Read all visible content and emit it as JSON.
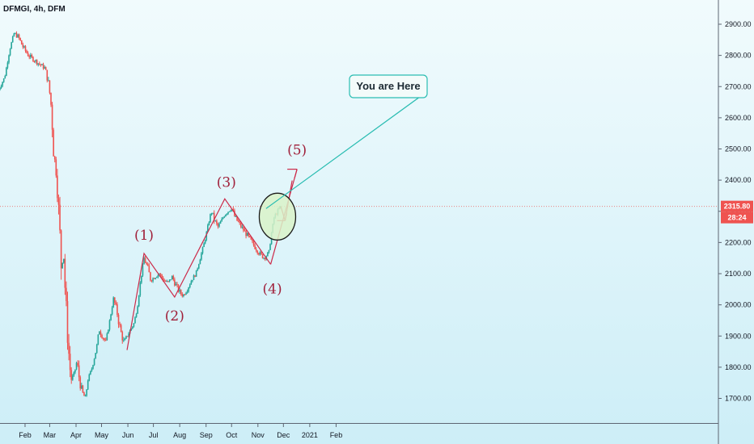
{
  "header": {
    "symbol": "DFMGI, 4h, DFM"
  },
  "colors": {
    "up": "#26a69a",
    "down": "#ef5350",
    "wave_line": "#cc2b4a",
    "wave_label": "#a0203a",
    "callout": "#2bbdb2",
    "circle_fill": "#d9f2c8",
    "circle_stroke": "#1a1a1a",
    "price_tag": "#ef5350"
  },
  "price_tags": {
    "last_price": "2315.80",
    "countdown": "28:24"
  },
  "callout": {
    "text": "You are Here"
  },
  "chart_data": {
    "type": "candlestick",
    "xlabel": "",
    "ylabel": "",
    "ylim": [
      1645,
      2960
    ],
    "y_ticks": [
      "2900.00",
      "2800.00",
      "2700.00",
      "2600.00",
      "2500.00",
      "2400.00",
      "2300.00",
      "2200.00",
      "2100.00",
      "2000.00",
      "1900.00",
      "1800.00",
      "1700.00"
    ],
    "x_ticks": [
      "Feb",
      "Mar",
      "Apr",
      "May",
      "Jun",
      "Jul",
      "Aug",
      "Sep",
      "Oct",
      "Nov",
      "Dec",
      "2021",
      "Feb"
    ],
    "series": [
      {
        "close_path": [
          [
            "2020-01-01",
            2690
          ],
          [
            "2020-01-08",
            2730
          ],
          [
            "2020-01-14",
            2820
          ],
          [
            "2020-01-19",
            2870
          ],
          [
            "2020-01-24",
            2860
          ],
          [
            "2020-01-29",
            2830
          ],
          [
            "2020-02-05",
            2800
          ],
          [
            "2020-02-12",
            2785
          ],
          [
            "2020-02-19",
            2770
          ],
          [
            "2020-02-24",
            2760
          ],
          [
            "2020-02-28",
            2720
          ],
          [
            "2020-03-01",
            2680
          ],
          [
            "2020-03-03",
            2630
          ],
          [
            "2020-03-06",
            2480
          ],
          [
            "2020-03-09",
            2420
          ],
          [
            "2020-03-12",
            2280
          ],
          [
            "2020-03-15",
            2100
          ],
          [
            "2020-03-17",
            2180
          ],
          [
            "2020-03-20",
            2000
          ],
          [
            "2020-03-23",
            1860
          ],
          [
            "2020-03-26",
            1760
          ],
          [
            "2020-03-30",
            1780
          ],
          [
            "2020-04-02",
            1820
          ],
          [
            "2020-04-05",
            1760
          ],
          [
            "2020-04-08",
            1720
          ],
          [
            "2020-04-12",
            1700
          ],
          [
            "2020-04-15",
            1760
          ],
          [
            "2020-04-20",
            1800
          ],
          [
            "2020-04-25",
            1860
          ],
          [
            "2020-04-28",
            1920
          ],
          [
            "2020-05-02",
            1900
          ],
          [
            "2020-05-06",
            1880
          ],
          [
            "2020-05-10",
            1940
          ],
          [
            "2020-05-15",
            2020
          ],
          [
            "2020-05-19",
            1980
          ],
          [
            "2020-05-23",
            1920
          ],
          [
            "2020-05-27",
            1880
          ],
          [
            "2020-05-31",
            1900
          ],
          [
            "2020-06-04",
            1920
          ],
          [
            "2020-06-08",
            1940
          ],
          [
            "2020-06-12",
            1990
          ],
          [
            "2020-06-16",
            2080
          ],
          [
            "2020-06-20",
            2150
          ],
          [
            "2020-06-24",
            2120
          ],
          [
            "2020-06-28",
            2080
          ],
          [
            "2020-07-03",
            2090
          ],
          [
            "2020-07-08",
            2100
          ],
          [
            "2020-07-13",
            2080
          ],
          [
            "2020-07-18",
            2070
          ],
          [
            "2020-07-23",
            2090
          ],
          [
            "2020-07-28",
            2060
          ],
          [
            "2020-08-01",
            2040
          ],
          [
            "2020-08-05",
            2030
          ],
          [
            "2020-08-10",
            2050
          ],
          [
            "2020-08-15",
            2080
          ],
          [
            "2020-08-20",
            2100
          ],
          [
            "2020-08-25",
            2150
          ],
          [
            "2020-08-30",
            2200
          ],
          [
            "2020-09-03",
            2250
          ],
          [
            "2020-09-07",
            2300
          ],
          [
            "2020-09-11",
            2270
          ],
          [
            "2020-09-15",
            2250
          ],
          [
            "2020-09-19",
            2270
          ],
          [
            "2020-09-23",
            2290
          ],
          [
            "2020-09-27",
            2300
          ],
          [
            "2020-10-01",
            2310
          ],
          [
            "2020-10-05",
            2280
          ],
          [
            "2020-10-10",
            2260
          ],
          [
            "2020-10-15",
            2240
          ],
          [
            "2020-10-20",
            2220
          ],
          [
            "2020-10-25",
            2200
          ],
          [
            "2020-10-30",
            2180
          ],
          [
            "2020-11-04",
            2160
          ],
          [
            "2020-11-09",
            2150
          ],
          [
            "2020-11-14",
            2170
          ],
          [
            "2020-11-17",
            2230
          ],
          [
            "2020-11-20",
            2280
          ],
          [
            "2020-11-24",
            2300
          ],
          [
            "2020-11-28",
            2315.8
          ]
        ]
      }
    ],
    "waves": [
      {
        "label": "(1)",
        "date": "2020-06-20",
        "price": 2165
      },
      {
        "label": "(2)",
        "date": "2020-07-26",
        "price": 2025
      },
      {
        "label": "(3)",
        "date": "2020-09-23",
        "price": 2340
      },
      {
        "label": "(4)",
        "date": "2020-11-16",
        "price": 2130
      },
      {
        "label": "(5)",
        "date": "2020-12-17",
        "price": 2435
      }
    ],
    "wave_start": {
      "date": "2020-05-31",
      "price": 1855
    },
    "projection": {
      "from_date": "2020-11-28",
      "from_price": 2315,
      "pullback_date": "2020-12-03",
      "pullback_price": 2270
    }
  }
}
